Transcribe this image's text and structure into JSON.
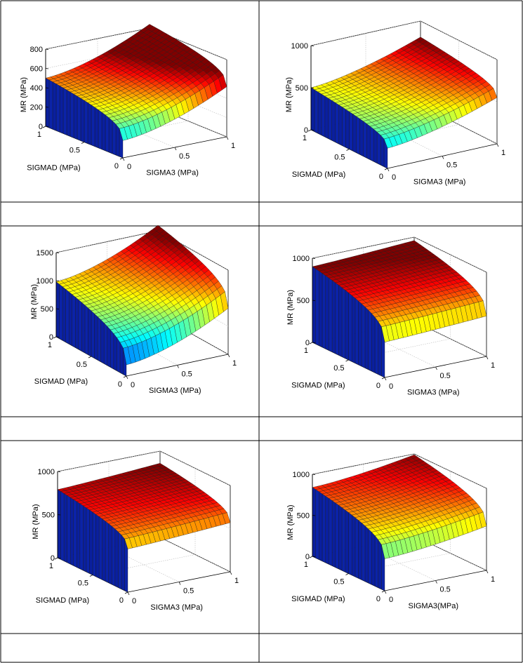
{
  "chart_data": [
    {
      "type": "surface",
      "zlabel": "MR (MPa)",
      "xlabel": "SIGMAD (MPa)",
      "ylabel": "SIGMA3 (MPa)",
      "xlim": [
        0,
        1
      ],
      "ylim": [
        0,
        1
      ],
      "zlim": [
        0,
        800
      ],
      "x_ticks": [
        "0",
        "0.5",
        "1"
      ],
      "y_ticks": [
        "0",
        "0.5",
        "1"
      ],
      "z_ticks": [
        0,
        200,
        400,
        600,
        800
      ],
      "z_tick_labels": [
        "0",
        "200",
        "400",
        "600",
        "800"
      ],
      "surface": {
        "base": 180,
        "sd_gain": 320,
        "s3_gain": 340,
        "sd_exp": 0.35,
        "s3_exp": 1.6
      },
      "color_range": [
        0,
        650
      ]
    },
    {
      "type": "surface",
      "zlabel": "MR (MPa)",
      "xlabel": "SIGMAD (MPa)",
      "ylabel": "SIGMA3 (MPa)",
      "xlim": [
        0,
        1
      ],
      "ylim": [
        0,
        1
      ],
      "zlim": [
        0,
        1000
      ],
      "x_ticks": [
        "0",
        "0.5",
        "1"
      ],
      "y_ticks": [
        "0",
        "0.5",
        "1"
      ],
      "z_ticks": [
        0,
        500,
        1000
      ],
      "z_tick_labels": [
        "0",
        "500",
        "1000"
      ],
      "surface": {
        "base": 240,
        "sd_gain": 260,
        "s3_gain": 310,
        "sd_exp": 0.35,
        "s3_exp": 1.5
      },
      "color_range": [
        0,
        800
      ]
    },
    {
      "type": "surface",
      "zlabel": "MR (MPa)",
      "xlabel": "SIGMAD (MPa)",
      "ylabel": "SIGMA3 (MPa)",
      "xlim": [
        0,
        1
      ],
      "ylim": [
        0,
        1
      ],
      "zlim": [
        0,
        1500
      ],
      "x_ticks": [
        "0",
        "0.5",
        "1"
      ],
      "y_ticks": [
        "0",
        "0.5",
        "1"
      ],
      "z_ticks": [
        0,
        500,
        1000,
        1500
      ],
      "z_tick_labels": [
        "0",
        "500",
        "1000",
        "1500"
      ],
      "surface": {
        "base": 200,
        "sd_gain": 780,
        "s3_gain": 620,
        "sd_exp": 0.35,
        "s3_exp": 1.6
      },
      "color_range": [
        0,
        1500
      ]
    },
    {
      "type": "surface",
      "zlabel": "MR (MPa)",
      "xlabel": "SIGMAD (MPa)",
      "ylabel": "SIGMA3 (MPa)",
      "xlim": [
        0,
        1
      ],
      "ylim": [
        0,
        1
      ],
      "zlim": [
        0,
        1000
      ],
      "x_ticks": [
        "0",
        "0.5",
        "1"
      ],
      "y_ticks": [
        "0",
        "0.5",
        "1"
      ],
      "z_ticks": [
        0,
        500,
        1000
      ],
      "z_tick_labels": [
        "0",
        "500",
        "1000"
      ],
      "surface": {
        "base": 420,
        "sd_gain": 480,
        "s3_gain": 60,
        "sd_exp": 0.35,
        "s3_exp": 1.2
      },
      "color_range": [
        0,
        900
      ]
    },
    {
      "type": "surface",
      "zlabel": "MR (MPa)",
      "xlabel": "SIGMAD (MPa)",
      "ylabel": "SIGMA3 (MPa)",
      "xlim": [
        0,
        1
      ],
      "ylim": [
        0,
        1
      ],
      "zlim": [
        0,
        1000
      ],
      "x_ticks": [
        "0",
        "0.5",
        "1"
      ],
      "y_ticks": [
        "0",
        "0.5",
        "1"
      ],
      "z_ticks": [
        0,
        500,
        1000
      ],
      "z_tick_labels": [
        "0",
        "500",
        "1000"
      ],
      "surface": {
        "base": 500,
        "sd_gain": 290,
        "s3_gain": 70,
        "sd_exp": 0.35,
        "s3_exp": 1.2
      },
      "color_range": [
        0,
        850
      ]
    },
    {
      "type": "surface",
      "zlabel": "MR (MPa)",
      "xlabel": "SIGMAD (MPa)",
      "ylabel": "SIGMA3(MPa)",
      "xlim": [
        0,
        1
      ],
      "ylim": [
        0,
        1
      ],
      "zlim": [
        0,
        1000
      ],
      "x_ticks": [
        "0",
        "0.5",
        "1"
      ],
      "y_ticks": [
        "0",
        "0.5",
        "1"
      ],
      "z_ticks": [
        0,
        500,
        1000
      ],
      "z_tick_labels": [
        "0",
        "500",
        "1000"
      ],
      "surface": {
        "base": 390,
        "sd_gain": 450,
        "s3_gain": 150,
        "sd_exp": 0.35,
        "s3_exp": 1.5
      },
      "color_range": [
        0,
        1000
      ]
    }
  ]
}
